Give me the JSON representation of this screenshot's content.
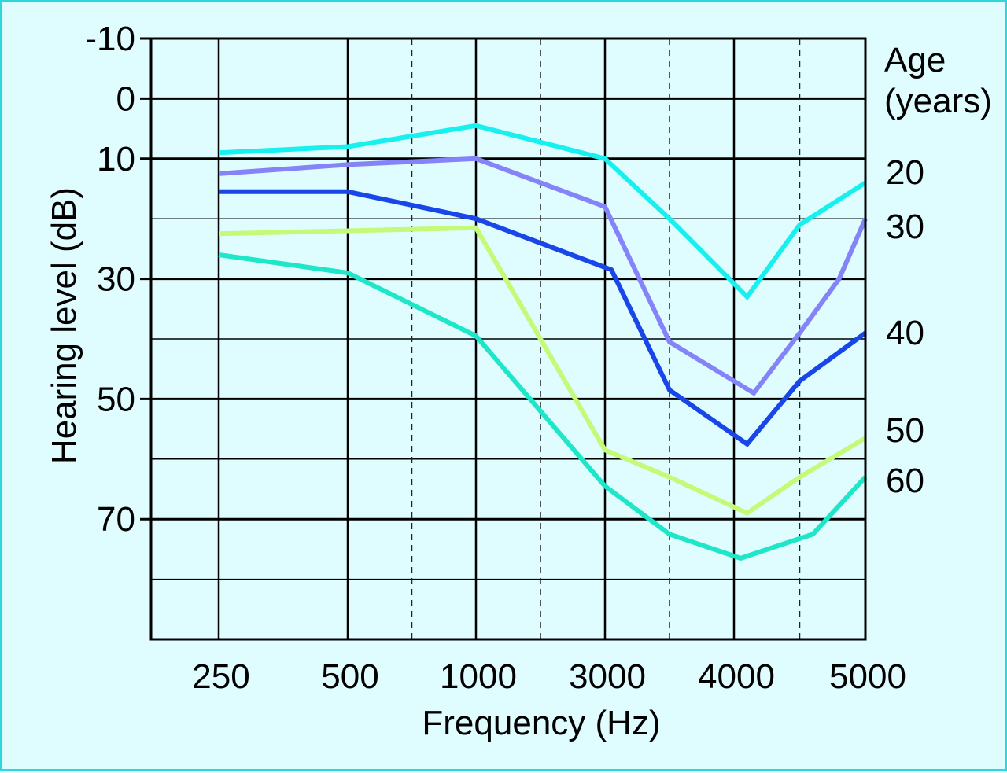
{
  "chart_data": {
    "type": "line",
    "title": "",
    "xlabel": "Frequency (Hz)",
    "ylabel": "Hearing level (dB)",
    "categories": [
      "250",
      "500",
      "1000",
      "3000",
      "4000",
      "5000"
    ],
    "y_ticks": [
      "-10",
      "0",
      "10",
      "30",
      "50",
      "70"
    ],
    "y_tick_values": [
      -10,
      0,
      10,
      30,
      50,
      70
    ],
    "ylim": [
      -10,
      90
    ],
    "y_inverted": true,
    "grid": true,
    "legend": {
      "title_line1": "Age",
      "title_line2": "(years)",
      "placement": "right"
    },
    "series": [
      {
        "name": "20",
        "color": "#18f0f0",
        "x": [
          0,
          1,
          2,
          3,
          3.5,
          4.1,
          4.5,
          5
        ],
        "values": [
          9,
          8,
          4.5,
          10,
          20,
          33,
          21,
          14
        ]
      },
      {
        "name": "30",
        "color": "#8484f8",
        "x": [
          0,
          1,
          2,
          3,
          3.5,
          4.15,
          4.5,
          4.8,
          5
        ],
        "values": [
          12.5,
          11,
          10,
          18,
          40.5,
          49,
          39,
          30,
          20
        ]
      },
      {
        "name": "40",
        "color": "#1846e8",
        "x": [
          0,
          1,
          2,
          3.05,
          3.5,
          4.1,
          4.5,
          5
        ],
        "values": [
          15.5,
          15.5,
          20,
          28.5,
          48.5,
          57.5,
          47,
          39
        ]
      },
      {
        "name": "50",
        "color": "#c4fa78",
        "x": [
          0,
          1,
          2,
          3,
          3.5,
          4.1,
          4.5,
          5
        ],
        "values": [
          22.5,
          22,
          21.5,
          58.5,
          63,
          69,
          63,
          56.5
        ]
      },
      {
        "name": "60",
        "color": "#1ee6c8",
        "x": [
          0,
          1,
          2,
          3,
          3.5,
          4.05,
          4.6,
          5
        ],
        "values": [
          26,
          29,
          39.5,
          64.5,
          72.5,
          76.5,
          72.5,
          63
        ]
      }
    ]
  }
}
